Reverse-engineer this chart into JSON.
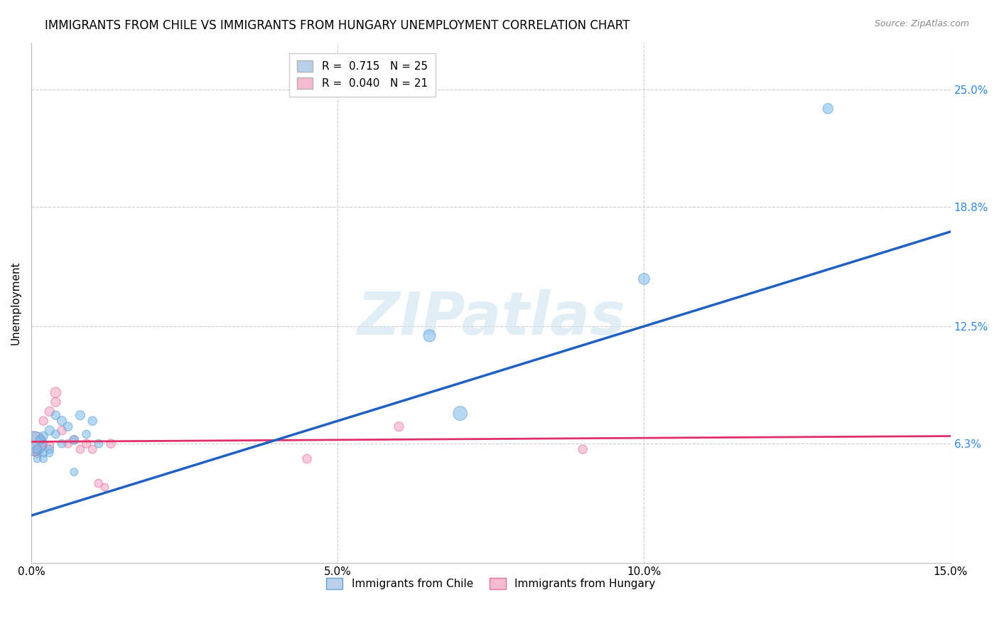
{
  "title": "IMMIGRANTS FROM CHILE VS IMMIGRANTS FROM HUNGARY UNEMPLOYMENT CORRELATION CHART",
  "source": "Source: ZipAtlas.com",
  "ylabel": "Unemployment",
  "x_min": 0.0,
  "x_max": 0.15,
  "y_min": 0.0,
  "y_max": 0.275,
  "y_ticks": [
    0.063,
    0.125,
    0.188,
    0.25
  ],
  "y_tick_labels": [
    "6.3%",
    "12.5%",
    "18.8%",
    "25.0%"
  ],
  "x_ticks": [
    0.0,
    0.05,
    0.1,
    0.15
  ],
  "x_tick_labels": [
    "0.0%",
    "5.0%",
    "10.0%",
    "15.0%"
  ],
  "watermark": "ZIPatlas",
  "legend_entries": [
    {
      "label": "R =  0.715   N = 25",
      "color": "#adc8e8"
    },
    {
      "label": "R =  0.040   N = 21",
      "color": "#f4b0c8"
    }
  ],
  "chile_scatter": {
    "x": [
      0.0005,
      0.001,
      0.001,
      0.0015,
      0.002,
      0.002,
      0.002,
      0.003,
      0.003,
      0.003,
      0.004,
      0.004,
      0.005,
      0.005,
      0.006,
      0.007,
      0.007,
      0.008,
      0.009,
      0.01,
      0.011,
      0.065,
      0.07,
      0.1,
      0.13
    ],
    "y": [
      0.063,
      0.06,
      0.055,
      0.065,
      0.058,
      0.067,
      0.055,
      0.07,
      0.06,
      0.058,
      0.078,
      0.068,
      0.075,
      0.063,
      0.072,
      0.065,
      0.048,
      0.078,
      0.068,
      0.075,
      0.063,
      0.12,
      0.079,
      0.15,
      0.24
    ],
    "size": [
      600,
      80,
      60,
      80,
      70,
      80,
      60,
      90,
      70,
      60,
      80,
      70,
      90,
      70,
      80,
      80,
      60,
      90,
      70,
      80,
      70,
      150,
      200,
      130,
      110
    ],
    "color": "#7ab8e8",
    "edgecolor": "#5599cc",
    "alpha": 0.55
  },
  "hungary_scatter": {
    "x": [
      0.0005,
      0.001,
      0.001,
      0.002,
      0.002,
      0.003,
      0.003,
      0.004,
      0.004,
      0.005,
      0.006,
      0.007,
      0.008,
      0.009,
      0.01,
      0.011,
      0.012,
      0.013,
      0.045,
      0.06,
      0.09
    ],
    "y": [
      0.063,
      0.058,
      0.06,
      0.063,
      0.075,
      0.08,
      0.062,
      0.09,
      0.085,
      0.07,
      0.063,
      0.065,
      0.06,
      0.063,
      0.06,
      0.042,
      0.04,
      0.063,
      0.055,
      0.072,
      0.06
    ],
    "size": [
      600,
      80,
      60,
      70,
      80,
      90,
      70,
      110,
      90,
      80,
      70,
      80,
      70,
      80,
      70,
      70,
      60,
      80,
      80,
      90,
      80
    ],
    "color": "#f4a0c0",
    "edgecolor": "#e06090",
    "alpha": 0.55
  },
  "chile_line": {
    "x": [
      0.0,
      0.15
    ],
    "y": [
      0.025,
      0.175
    ],
    "color": "#2060c0",
    "linewidth": 2.5
  },
  "hungary_line": {
    "x": [
      0.0,
      0.15
    ],
    "y": [
      0.064,
      0.067
    ],
    "color": "#e0306a",
    "linewidth": 2.0,
    "linestyle": "-"
  },
  "background_color": "#ffffff",
  "grid_color": "#cccccc",
  "title_fontsize": 12,
  "axis_label_fontsize": 11,
  "tick_fontsize": 11,
  "legend_fontsize": 11
}
